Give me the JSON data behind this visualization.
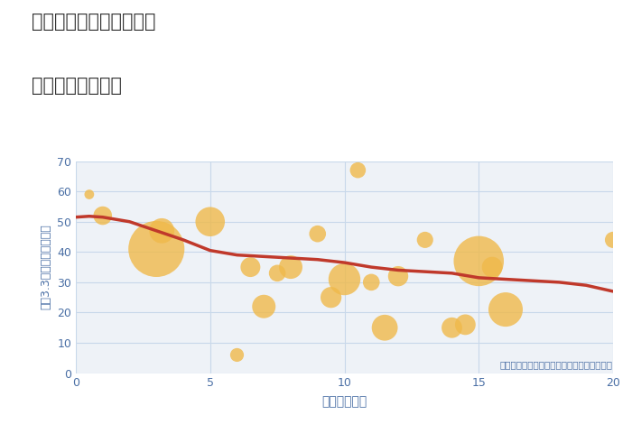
{
  "title_line1": "奈良県奈良市出屋敷町の",
  "title_line2": "駅距離別土地価格",
  "xlabel": "駅距離（分）",
  "ylabel": "坪（3.3㎡）単価（万円）",
  "annotation": "円の大きさは、取引のあった物件面積を示す",
  "xlim": [
    0,
    20
  ],
  "ylim": [
    0,
    70
  ],
  "xticks": [
    0,
    5,
    10,
    15,
    20
  ],
  "yticks": [
    0,
    10,
    20,
    30,
    40,
    50,
    60,
    70
  ],
  "fig_bg_color": "#ffffff",
  "plot_bg_color": "#eef2f7",
  "grid_color": "#c8d8ea",
  "bubble_color": "#f0b94a",
  "bubble_alpha": 0.8,
  "line_color": "#c0392b",
  "line_width": 2.5,
  "tick_color": "#4a6fa5",
  "label_color": "#4a6fa5",
  "title_color": "#333333",
  "annotation_color": "#4a6fa5",
  "scatter_x": [
    0.5,
    1.0,
    3.0,
    3.2,
    5.0,
    6.0,
    6.5,
    7.0,
    7.5,
    8.0,
    9.0,
    9.5,
    10.0,
    10.5,
    11.0,
    11.5,
    12.0,
    13.0,
    14.0,
    14.5,
    15.0,
    15.5,
    16.0,
    20.0
  ],
  "scatter_y": [
    59,
    52,
    41,
    47,
    50,
    6,
    35,
    22,
    33,
    35,
    46,
    25,
    31,
    67,
    30,
    15,
    32,
    44,
    15,
    16,
    37,
    35,
    21,
    44
  ],
  "scatter_size": [
    60,
    220,
    2000,
    400,
    550,
    120,
    250,
    350,
    180,
    350,
    180,
    280,
    650,
    160,
    180,
    430,
    260,
    170,
    270,
    270,
    1600,
    270,
    750,
    170
  ],
  "trend_x": [
    0,
    0.5,
    1,
    2,
    3,
    4,
    5,
    6,
    7,
    8,
    9,
    10,
    11,
    12,
    13,
    14,
    15,
    16,
    17,
    18,
    19,
    20
  ],
  "trend_y": [
    51.5,
    51.8,
    51.5,
    50,
    47,
    44,
    40.5,
    39,
    38.5,
    38,
    37.5,
    36.5,
    35,
    34,
    33.5,
    33,
    31.5,
    31,
    30.5,
    30,
    29,
    27
  ]
}
